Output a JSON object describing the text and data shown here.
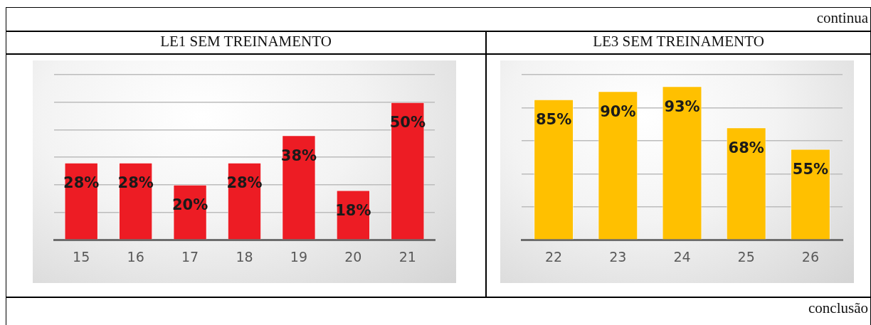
{
  "chart_data": [
    {
      "type": "bar",
      "title": "LE1 SEM TREINAMENTO",
      "categories": [
        "15",
        "16",
        "17",
        "18",
        "19",
        "20",
        "21"
      ],
      "values": [
        28,
        28,
        20,
        28,
        38,
        18,
        50
      ],
      "color": "#ed1c24",
      "ylim": [
        0,
        60
      ],
      "yticks": [
        {
          "value": 0,
          "label": null
        },
        {
          "value": 10,
          "label": null
        },
        {
          "value": 20,
          "label": null
        },
        {
          "value": 30,
          "label": null
        },
        {
          "value": 40,
          "label": null
        },
        {
          "value": 50,
          "label": null
        },
        {
          "value": 60,
          "label": null
        }
      ],
      "tick_labels": "x",
      "grid": "y",
      "value_labels": [
        "28%",
        "28%",
        "20%",
        "28%",
        "38%",
        "18%",
        "50%"
      ]
    },
    {
      "type": "bar",
      "title": "LE3 SEM TREINAMENTO",
      "categories": [
        "22",
        "23",
        "24",
        "25",
        "26"
      ],
      "values": [
        85,
        90,
        93,
        68,
        55
      ],
      "color": "#ffc000",
      "ylim": [
        0,
        100
      ],
      "yticks": [
        {
          "value": 0,
          "label": null
        },
        {
          "value": 20,
          "label": null
        },
        {
          "value": 40,
          "label": null
        },
        {
          "value": 60,
          "label": null
        },
        {
          "value": 80,
          "label": null
        },
        {
          "value": 100,
          "label": null
        }
      ],
      "tick_labels": "x",
      "grid": "y",
      "value_labels": [
        "85%",
        "90%",
        "93%",
        "68%",
        "55%"
      ]
    },
    {
      "type": "other",
      "annotations": [
        "continua",
        "conclusão"
      ]
    }
  ]
}
